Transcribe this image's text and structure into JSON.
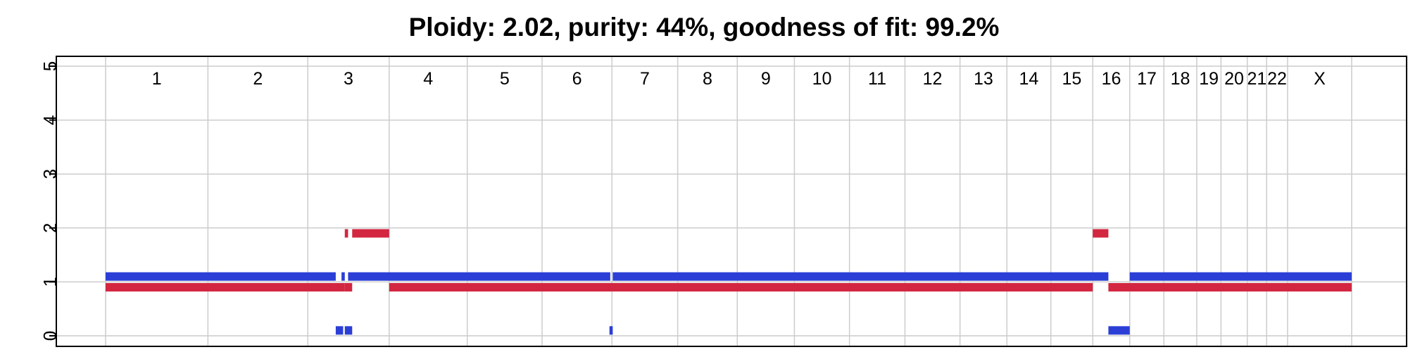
{
  "chart_data": {
    "type": "segment-plot",
    "title": "Ploidy: 2.02, purity: 44%, goodness of fit: 99.2%",
    "xlabel": "",
    "ylabel": "",
    "ylim": [
      0,
      5
    ],
    "y_ticks": [
      "0",
      "1",
      "2",
      "3",
      "4",
      "5"
    ],
    "grid": true,
    "chromosomes": [
      {
        "label": "1",
        "start": 0,
        "end": 249
      },
      {
        "label": "2",
        "start": 249,
        "end": 492
      },
      {
        "label": "3",
        "start": 492,
        "end": 690
      },
      {
        "label": "4",
        "start": 690,
        "end": 880
      },
      {
        "label": "5",
        "start": 880,
        "end": 1062
      },
      {
        "label": "6",
        "start": 1062,
        "end": 1232
      },
      {
        "label": "7",
        "start": 1232,
        "end": 1392
      },
      {
        "label": "8",
        "start": 1392,
        "end": 1537
      },
      {
        "label": "9",
        "start": 1537,
        "end": 1676
      },
      {
        "label": "10",
        "start": 1676,
        "end": 1810
      },
      {
        "label": "11",
        "start": 1810,
        "end": 1945
      },
      {
        "label": "12",
        "start": 1945,
        "end": 2079
      },
      {
        "label": "13",
        "start": 2079,
        "end": 2193
      },
      {
        "label": "14",
        "start": 2193,
        "end": 2300
      },
      {
        "label": "15",
        "start": 2300,
        "end": 2402
      },
      {
        "label": "16",
        "start": 2402,
        "end": 2492
      },
      {
        "label": "17",
        "start": 2492,
        "end": 2575
      },
      {
        "label": "18",
        "start": 2575,
        "end": 2655
      },
      {
        "label": "19",
        "start": 2655,
        "end": 2714
      },
      {
        "label": "20",
        "start": 2714,
        "end": 2778
      },
      {
        "label": "21",
        "start": 2778,
        "end": 2825
      },
      {
        "label": "22",
        "start": 2825,
        "end": 2876
      },
      {
        "label": "X",
        "start": 2876,
        "end": 3032
      }
    ],
    "series": [
      {
        "color": "#2b3fd6",
        "segments": [
          {
            "start": 0,
            "end": 560,
            "value": 1.1
          },
          {
            "start": 560,
            "end": 578,
            "value": 0.1
          },
          {
            "start": 574,
            "end": 582,
            "value": 1.1
          },
          {
            "start": 582,
            "end": 600,
            "value": 0.1
          },
          {
            "start": 590,
            "end": 1228,
            "value": 1.1
          },
          {
            "start": 1226,
            "end": 1234,
            "value": 0.1
          },
          {
            "start": 1234,
            "end": 2440,
            "value": 1.1
          },
          {
            "start": 2440,
            "end": 2492,
            "value": 0.1
          },
          {
            "start": 2492,
            "end": 3032,
            "value": 1.1
          }
        ]
      },
      {
        "color": "#d32640",
        "segments": [
          {
            "start": 0,
            "end": 582,
            "value": 0.9
          },
          {
            "start": 582,
            "end": 590,
            "value": 1.9
          },
          {
            "start": 582,
            "end": 600,
            "value": 0.9
          },
          {
            "start": 600,
            "end": 690,
            "value": 1.9
          },
          {
            "start": 690,
            "end": 2402,
            "value": 0.9
          },
          {
            "start": 2402,
            "end": 2440,
            "value": 1.9
          },
          {
            "start": 2440,
            "end": 3032,
            "value": 0.9
          }
        ]
      }
    ]
  }
}
